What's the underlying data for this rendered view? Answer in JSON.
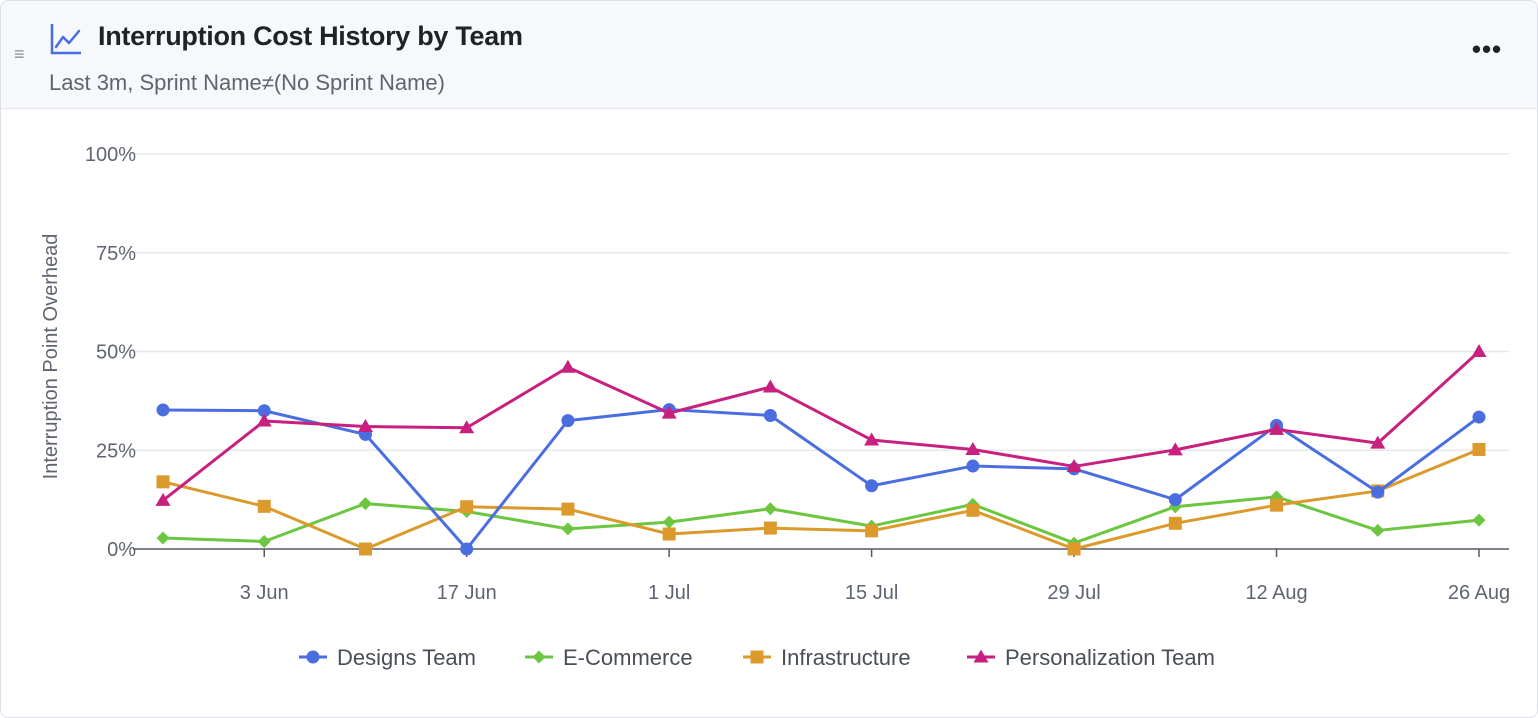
{
  "header": {
    "title": "Interruption Cost History by Team",
    "subtitle": "Last 3m, Sprint Name≠(No Sprint Name)",
    "menu_label": "•••",
    "drag_label": "≡"
  },
  "icons": {
    "title": "line-chart-icon",
    "menu": "more-horizontal-icon",
    "drag": "drag-handle-icon"
  },
  "colors": {
    "accent": "#4a6ee0"
  },
  "chart_data": {
    "type": "line",
    "title": "Interruption Cost History by Team",
    "xlabel": "",
    "ylabel": "Interruption Point Overhead",
    "ylim": [
      0,
      100
    ],
    "yticks": [
      0,
      25,
      50,
      75,
      100
    ],
    "ytick_labels": [
      "0%",
      "25%",
      "50%",
      "75%",
      "100%"
    ],
    "x": [
      "2024-05-27",
      "2024-06-03",
      "2024-06-10",
      "2024-06-17",
      "2024-06-24",
      "2024-07-01",
      "2024-07-08",
      "2024-07-15",
      "2024-07-22",
      "2024-07-29",
      "2024-08-05",
      "2024-08-12",
      "2024-08-19",
      "2024-08-26"
    ],
    "xlim": [
      "2024-05-27",
      "2024-08-26"
    ],
    "xticks": [
      "2024-06-03",
      "2024-06-17",
      "2024-07-01",
      "2024-07-15",
      "2024-07-29",
      "2024-08-12",
      "2024-08-26"
    ],
    "xtick_labels": [
      "3 Jun",
      "17 Jun",
      "1 Jul",
      "15 Jul",
      "29 Jul",
      "12 Aug",
      "26 Aug"
    ],
    "grid": true,
    "legend_position": "bottom",
    "series": [
      {
        "name": "Designs Team",
        "color": "#4a6ee0",
        "marker": "circle",
        "values": [
          35.2,
          35.0,
          29.0,
          0.0,
          32.5,
          35.3,
          33.8,
          16.0,
          21.0,
          20.3,
          12.5,
          31.3,
          14.4,
          33.4
        ]
      },
      {
        "name": "E-Commerce",
        "color": "#6cc63f",
        "marker": "diamond",
        "values": [
          2.8,
          1.9,
          11.5,
          9.5,
          5.1,
          6.8,
          10.2,
          5.8,
          11.3,
          1.5,
          10.7,
          13.2,
          4.7,
          7.3
        ]
      },
      {
        "name": "Infrastructure",
        "color": "#dc9a2c",
        "marker": "square",
        "values": [
          17.0,
          10.8,
          0.0,
          10.7,
          10.1,
          3.8,
          5.3,
          4.6,
          9.8,
          0.0,
          6.5,
          11.1,
          14.7,
          25.2
        ]
      },
      {
        "name": "Personalization Team",
        "color": "#c8207e",
        "marker": "triangle",
        "values": [
          12.3,
          32.4,
          31.0,
          30.7,
          46.0,
          34.4,
          41.0,
          27.6,
          25.2,
          20.9,
          25.1,
          30.3,
          26.8,
          50.0
        ]
      }
    ]
  }
}
